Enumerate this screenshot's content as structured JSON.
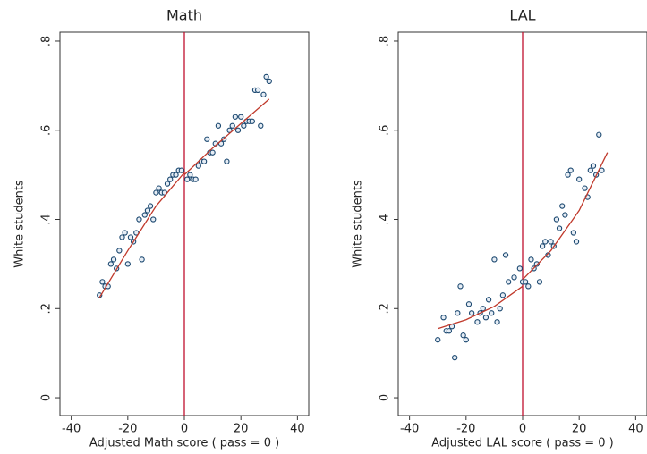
{
  "chart_data": [
    {
      "type": "scatter",
      "title": "Math",
      "xlabel": "Adjusted Math score ( pass = 0 )",
      "ylabel": "White students",
      "x": [
        -30,
        -29,
        -28,
        -27,
        -26,
        -25,
        -24,
        -23,
        -22,
        -21,
        -20,
        -19,
        -18,
        -17,
        -16,
        -15,
        -14,
        -13,
        -12,
        -11,
        -10,
        -9,
        -8,
        -7,
        -6,
        -5,
        -4,
        -3,
        -2,
        -1,
        1,
        2,
        3,
        4,
        5,
        6,
        7,
        8,
        9,
        10,
        11,
        12,
        13,
        14,
        15,
        16,
        17,
        18,
        19,
        20,
        21,
        22,
        23,
        24,
        25,
        26,
        27,
        28,
        29,
        30
      ],
      "y": [
        0.23,
        0.26,
        0.25,
        0.25,
        0.3,
        0.31,
        0.29,
        0.33,
        0.36,
        0.37,
        0.3,
        0.36,
        0.35,
        0.37,
        0.4,
        0.31,
        0.41,
        0.42,
        0.43,
        0.4,
        0.46,
        0.47,
        0.46,
        0.46,
        0.48,
        0.49,
        0.5,
        0.5,
        0.51,
        0.51,
        0.49,
        0.5,
        0.49,
        0.49,
        0.52,
        0.53,
        0.53,
        0.58,
        0.55,
        0.55,
        0.57,
        0.61,
        0.57,
        0.58,
        0.53,
        0.6,
        0.61,
        0.63,
        0.6,
        0.63,
        0.61,
        0.62,
        0.62,
        0.62,
        0.69,
        0.69,
        0.61,
        0.68,
        0.72,
        0.71
      ],
      "fit": [
        {
          "x": [
            -30,
            -20,
            -10,
            0
          ],
          "y": [
            0.225,
            0.33,
            0.43,
            0.505
          ]
        },
        {
          "x": [
            0,
            10,
            20,
            30
          ],
          "y": [
            0.5,
            0.56,
            0.615,
            0.67
          ]
        }
      ],
      "cutoff": 0,
      "color": "#1a476f",
      "fit_color": "#c0392b",
      "cutoff_color": "#c0102e",
      "xlim": [
        -44,
        44
      ],
      "ylim": [
        -0.04,
        0.82
      ],
      "xticks": [
        -40,
        -20,
        0,
        20,
        40
      ],
      "yticks": [
        0,
        {
          "value": 0.2,
          "label": ".2"
        },
        {
          "value": 0.4,
          "label": ".4"
        },
        {
          "value": 0.6,
          "label": ".6"
        },
        {
          "value": 0.8,
          "label": ".8"
        }
      ]
    },
    {
      "type": "scatter",
      "title": "LAL",
      "xlabel": "Adjusted LAL score ( pass = 0 )",
      "ylabel": "White students",
      "x": [
        -30,
        -28,
        -27,
        -26,
        -25,
        -24,
        -23,
        -22,
        -21,
        -20,
        -19,
        -18,
        -16,
        -15,
        -14,
        -13,
        -12,
        -11,
        -10,
        -9,
        -8,
        -7,
        -6,
        -5,
        -3,
        -1,
        0,
        1,
        2,
        3,
        4,
        5,
        6,
        7,
        8,
        9,
        10,
        11,
        12,
        13,
        14,
        15,
        16,
        17,
        18,
        19,
        20,
        22,
        23,
        24,
        25,
        26,
        27,
        28
      ],
      "y": [
        0.13,
        0.18,
        0.15,
        0.15,
        0.16,
        0.09,
        0.19,
        0.25,
        0.14,
        0.13,
        0.21,
        0.19,
        0.17,
        0.19,
        0.2,
        0.18,
        0.22,
        0.19,
        0.31,
        0.17,
        0.2,
        0.23,
        0.32,
        0.26,
        0.27,
        0.29,
        0.26,
        0.26,
        0.25,
        0.31,
        0.29,
        0.3,
        0.26,
        0.34,
        0.35,
        0.32,
        0.35,
        0.34,
        0.4,
        0.38,
        0.43,
        0.41,
        0.5,
        0.51,
        0.37,
        0.35,
        0.49,
        0.47,
        0.45,
        0.51,
        0.52,
        0.5,
        0.59,
        0.51
      ],
      "fit": [
        {
          "x": [
            -30,
            -20,
            -10,
            0
          ],
          "y": [
            0.155,
            0.175,
            0.205,
            0.25
          ]
        },
        {
          "x": [
            0,
            10,
            20,
            30
          ],
          "y": [
            0.265,
            0.33,
            0.42,
            0.55
          ]
        }
      ],
      "cutoff": 0,
      "color": "#1a476f",
      "fit_color": "#c0392b",
      "cutoff_color": "#c0102e",
      "xlim": [
        -44,
        44
      ],
      "ylim": [
        -0.04,
        0.82
      ],
      "xticks": [
        -40,
        -20,
        0,
        20,
        40
      ],
      "yticks": [
        0,
        {
          "value": 0.2,
          "label": ".2"
        },
        {
          "value": 0.4,
          "label": ".4"
        },
        {
          "value": 0.6,
          "label": ".6"
        },
        {
          "value": 0.8,
          "label": ".8"
        }
      ]
    }
  ]
}
